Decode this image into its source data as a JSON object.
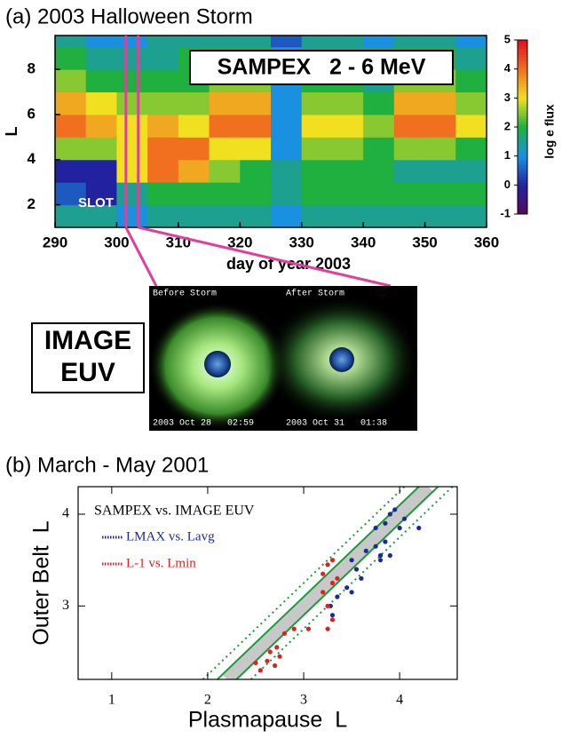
{
  "chart_data": [
    {
      "type": "heatmap",
      "title": "(a) 2003 Halloween Storm",
      "xlabel": "day of year 2003",
      "ylabel": "L",
      "annotation": "SAMPEX   2 - 6 MeV",
      "region_label": "SLOT",
      "xlim": [
        290,
        360
      ],
      "xticks": [
        290,
        300,
        310,
        320,
        330,
        340,
        350,
        360
      ],
      "ylim": [
        1,
        9.5
      ],
      "yticks": [
        2,
        4,
        6,
        8
      ],
      "x_edges": [
        290,
        295,
        300,
        305,
        310,
        315,
        320,
        325,
        330,
        335,
        340,
        345,
        350,
        355,
        360
      ],
      "y_edges": [
        1,
        2,
        3,
        4,
        5,
        6,
        7,
        8,
        9,
        9.5
      ],
      "z": [
        [
          1.5,
          1.5,
          1,
          1.5,
          1.5,
          1.5,
          1.5,
          1,
          1.5,
          1.5,
          1.5,
          1.5,
          1.5,
          1.5
        ],
        [
          0.5,
          0,
          1.5,
          2,
          2,
          2,
          2,
          1.5,
          2,
          2,
          2,
          2,
          2,
          2
        ],
        [
          0,
          0,
          3,
          4,
          3.5,
          2.5,
          2,
          1.5,
          2,
          2,
          2,
          1.5,
          1.5,
          1.5
        ],
        [
          2.5,
          2.5,
          3,
          4,
          4,
          3,
          3,
          1,
          2.5,
          2.5,
          2,
          2.5,
          2.5,
          2
        ],
        [
          4,
          3.5,
          3,
          3.5,
          3,
          4,
          4,
          1,
          3,
          3,
          2.5,
          4,
          4,
          3
        ],
        [
          3.5,
          3,
          2.5,
          2.5,
          2.5,
          3.5,
          3.5,
          1,
          2.5,
          2.5,
          2,
          3.5,
          3.5,
          2.5
        ],
        [
          2.5,
          2,
          2,
          2,
          2,
          2.5,
          2.5,
          1,
          2,
          2,
          1.5,
          2.5,
          2.5,
          2
        ],
        [
          2,
          1.5,
          1.5,
          1.5,
          2,
          2,
          2,
          1,
          1.5,
          1.5,
          1.5,
          2,
          2,
          1.5
        ],
        [
          1.5,
          1,
          1,
          1.5,
          1.5,
          1.5,
          1.5,
          0.5,
          1.5,
          1.5,
          1,
          1.5,
          1.5,
          1
        ]
      ],
      "zlim": [
        -1,
        5
      ],
      "zticks": [
        -1,
        0,
        1,
        2,
        3,
        4,
        5
      ],
      "colorbar_label": "log e flux",
      "colorscale": [
        "#5a0a5a",
        "#2222a0",
        "#1a90e0",
        "#20b040",
        "#f0e020",
        "#f07020",
        "#e01020"
      ],
      "markers": [
        301.5,
        303.5
      ],
      "marker_color": "#e0409c"
    },
    {
      "type": "scatter",
      "title": "(b) March - May 2001",
      "xlabel": "Plasmapause  L",
      "ylabel": "Outer Belt  L",
      "annotation": "SAMPEX vs. IMAGE EUV",
      "xlim": [
        0.65,
        4.6
      ],
      "xticks": [
        1,
        2,
        3,
        4
      ],
      "ylim": [
        2.2,
        4.3
      ],
      "yticks": [
        3,
        4
      ],
      "reference_lines": [
        {
          "offset": 0,
          "color": "#c8c8c8",
          "dash": "solid"
        },
        {
          "offset": 0.1,
          "color": "#1a9a3a",
          "dash": "solid"
        },
        {
          "offset": -0.1,
          "color": "#1a9a3a",
          "dash": "solid"
        },
        {
          "offset": 0.25,
          "color": "#1a9a3a",
          "dash": "dotted"
        },
        {
          "offset": -0.25,
          "color": "#1a9a3a",
          "dash": "dotted"
        }
      ],
      "series": [
        {
          "name": "LMAX vs. Lavg",
          "color": "#1a2a9a",
          "x": [
            3.3,
            3.28,
            3.35,
            3.45,
            3.5,
            3.6,
            3.55,
            3.5,
            3.65,
            3.8,
            3.85,
            3.75,
            3.85,
            3.9,
            3.95,
            4.05,
            4.0,
            4.2,
            3.75,
            3.8,
            3.9
          ],
          "values": [
            2.9,
            3.0,
            3.1,
            3.2,
            3.15,
            3.3,
            3.4,
            3.5,
            3.6,
            3.55,
            3.7,
            3.85,
            3.9,
            4.0,
            4.05,
            3.95,
            3.85,
            3.85,
            3.65,
            3.5,
            3.55
          ]
        },
        {
          "name": "L-1 vs. Lmin",
          "color": "#e02020",
          "x": [
            2.65,
            2.62,
            2.7,
            2.75,
            2.72,
            2.8,
            2.9,
            3.05,
            3.25,
            3.3,
            3.25,
            3.2,
            3.3,
            3.2,
            3.25,
            3.3,
            3.35,
            2.55,
            2.5
          ],
          "values": [
            2.5,
            2.4,
            2.35,
            2.45,
            2.55,
            2.7,
            2.75,
            2.75,
            2.75,
            2.85,
            3.0,
            3.15,
            3.25,
            3.35,
            3.45,
            3.5,
            3.3,
            2.3,
            2.38
          ]
        }
      ]
    }
  ],
  "euv_panel": {
    "label_line1": "IMAGE",
    "label_line2": "EUV",
    "before_caption": "Before Storm",
    "after_caption": "After Storm",
    "before_time": "2003 Oct 28   02:59",
    "after_time": "2003 Oct 31   01:38"
  }
}
